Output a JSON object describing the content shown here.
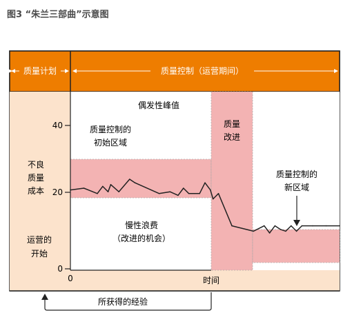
{
  "figure_title": "图3 “朱兰三部曲”示意图",
  "header": {
    "plan_label": "质量计划",
    "control_label": "质量控制（运营期间）"
  },
  "y_axis": {
    "label_lines": [
      "不良",
      "质量",
      "成本"
    ],
    "ticks": [
      "40",
      "20",
      "0"
    ]
  },
  "x_axis": {
    "zero_label": "0",
    "label": "时间"
  },
  "left_panel": {
    "start_lines": [
      "运营的",
      "开始"
    ]
  },
  "annotations": {
    "spike": "偶发性峰值",
    "initial_zone_lines": [
      "质量控制的",
      "初始区域"
    ],
    "improvement_lines": [
      "质量",
      "改进"
    ],
    "new_zone_lines": [
      "质量控制的",
      "新区域"
    ],
    "waste_lines": [
      "慢性浪费",
      "（改进的机会）"
    ]
  },
  "footer": {
    "lessons_label": "所获得的经验"
  },
  "colors": {
    "header": "#ee7d00",
    "panel_bg": "#fce3cc",
    "chart_bg": "#ffffff",
    "band": "#ef9a9a",
    "improvement": "#ef9a9a",
    "line": "#222222"
  },
  "chart_data": {
    "type": "line",
    "xlabel": "时间",
    "ylabel": "不良质量成本",
    "ylim": [
      0,
      50
    ],
    "yticks": [
      0,
      20,
      40
    ],
    "series": [
      {
        "x": [
          0,
          5,
          10,
          12,
          14,
          15,
          18,
          22,
          24,
          33,
          37,
          40,
          42,
          44,
          46,
          48,
          50,
          52,
          53,
          55,
          60,
          68,
          72,
          74,
          76,
          78,
          80,
          82,
          84,
          86,
          90,
          95,
          100
        ],
        "values": [
          22,
          22.5,
          21,
          23,
          21.5,
          23.5,
          21.5,
          25,
          24,
          21,
          21.5,
          20.5,
          22.5,
          21,
          21,
          21,
          24,
          22,
          19.5,
          21,
          12,
          10.5,
          12,
          10,
          12,
          11,
          10.5,
          12,
          10.5,
          12,
          12,
          12,
          12
        ]
      }
    ]
  }
}
